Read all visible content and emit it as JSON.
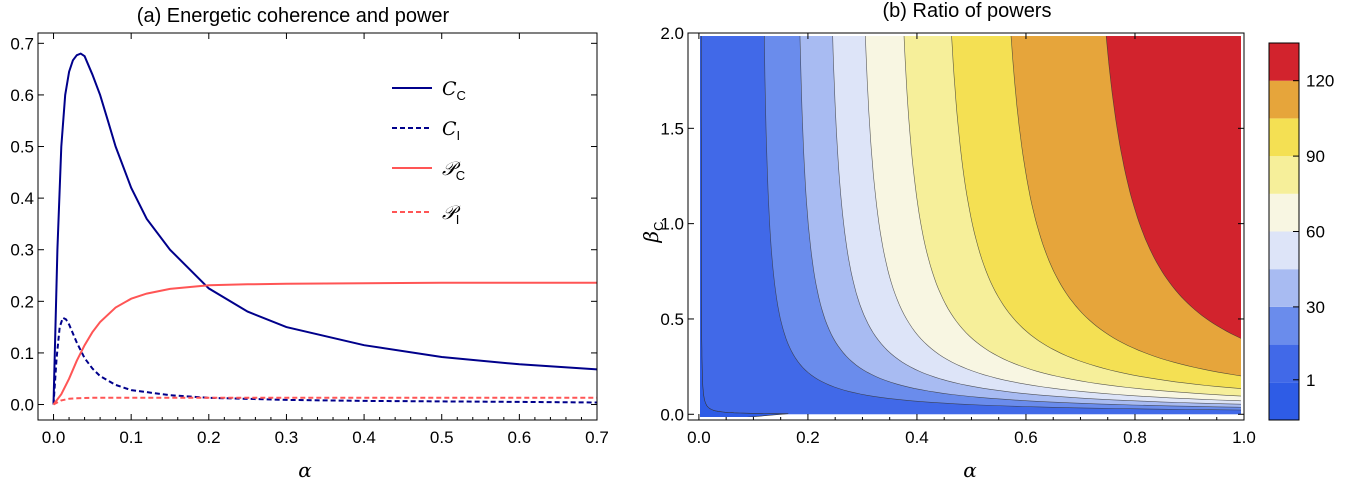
{
  "chart_data": [
    {
      "type": "line",
      "title": "(a) Energetic coherence and power",
      "xlabel": "α",
      "ylabel": "",
      "xlim": [
        -0.02,
        0.7
      ],
      "ylim": [
        -0.03,
        0.72
      ],
      "xticks": [
        "0.0",
        "0.1",
        "0.2",
        "0.3",
        "0.4",
        "0.5",
        "0.6",
        "0.7"
      ],
      "yticks": [
        "0.0",
        "0.1",
        "0.2",
        "0.3",
        "0.4",
        "0.5",
        "0.6",
        "0.7"
      ],
      "legend_position": "top-right",
      "series": [
        {
          "name": "C_C",
          "name_main": "C",
          "name_sub": "C",
          "color": "#00008B",
          "dash": "solid",
          "x": [
            0,
            0.005,
            0.01,
            0.015,
            0.02,
            0.025,
            0.03,
            0.035,
            0.04,
            0.05,
            0.06,
            0.07,
            0.08,
            0.1,
            0.12,
            0.15,
            0.2,
            0.25,
            0.3,
            0.4,
            0.5,
            0.6,
            0.7
          ],
          "y": [
            0,
            0.3,
            0.5,
            0.6,
            0.645,
            0.667,
            0.677,
            0.68,
            0.675,
            0.64,
            0.6,
            0.55,
            0.5,
            0.42,
            0.36,
            0.3,
            0.225,
            0.18,
            0.15,
            0.115,
            0.092,
            0.078,
            0.068
          ]
        },
        {
          "name": "C_I",
          "name_main": "C",
          "name_sub": "I",
          "color": "#00008B",
          "dash": "dashed",
          "x": [
            0,
            0.004,
            0.008,
            0.012,
            0.016,
            0.02,
            0.03,
            0.04,
            0.05,
            0.06,
            0.08,
            0.1,
            0.15,
            0.2,
            0.3,
            0.4,
            0.5,
            0.6,
            0.7
          ],
          "y": [
            0,
            0.09,
            0.15,
            0.168,
            0.165,
            0.155,
            0.12,
            0.09,
            0.07,
            0.055,
            0.038,
            0.028,
            0.018,
            0.013,
            0.009,
            0.007,
            0.006,
            0.005,
            0.004
          ]
        },
        {
          "name": "P_C",
          "name_main": "𝒫",
          "name_sub": "C",
          "color": "#FF5555",
          "dash": "solid",
          "x": [
            0,
            0.01,
            0.02,
            0.03,
            0.04,
            0.05,
            0.06,
            0.08,
            0.1,
            0.12,
            0.15,
            0.2,
            0.25,
            0.3,
            0.4,
            0.5,
            0.6,
            0.7
          ],
          "y": [
            0,
            0.02,
            0.05,
            0.085,
            0.115,
            0.14,
            0.16,
            0.188,
            0.205,
            0.215,
            0.224,
            0.231,
            0.233,
            0.234,
            0.235,
            0.236,
            0.236,
            0.236
          ]
        },
        {
          "name": "P_I",
          "name_main": "𝒫",
          "name_sub": "I",
          "color": "#FF5555",
          "dash": "dashed",
          "x": [
            0,
            0.01,
            0.02,
            0.03,
            0.05,
            0.08,
            0.1,
            0.2,
            0.3,
            0.4,
            0.5,
            0.6,
            0.7
          ],
          "y": [
            0,
            0.008,
            0.011,
            0.012,
            0.013,
            0.013,
            0.013,
            0.013,
            0.013,
            0.013,
            0.013,
            0.013,
            0.013
          ]
        }
      ]
    },
    {
      "type": "heatmap",
      "title": "(b) Ratio of powers",
      "xlabel": "α",
      "ylabel_main": "β",
      "ylabel_sub": "C",
      "xlim": [
        -0.02,
        1.0
      ],
      "ylim": [
        -0.03,
        2.0
      ],
      "xticks": [
        "0.0",
        "0.2",
        "0.4",
        "0.6",
        "0.8",
        "1.0"
      ],
      "yticks": [
        "0.0",
        "0.5",
        "1.0",
        "1.5",
        "2.0"
      ],
      "grid": false,
      "colorbar": {
        "labels": [
          "1",
          "30",
          "60",
          "90",
          "120"
        ],
        "label_values": [
          1,
          30,
          60,
          90,
          120
        ],
        "range": [
          -15,
          135
        ],
        "bands": [
          {
            "from": -15,
            "to": 0,
            "color": "#2E5CE6"
          },
          {
            "from": 0,
            "to": 15,
            "color": "#4169E8"
          },
          {
            "from": 15,
            "to": 30,
            "color": "#6A8CEC"
          },
          {
            "from": 30,
            "to": 45,
            "color": "#A8BBF2"
          },
          {
            "from": 45,
            "to": 60,
            "color": "#DDE4F8"
          },
          {
            "from": 60,
            "to": 75,
            "color": "#F8F6E2"
          },
          {
            "from": 75,
            "to": 90,
            "color": "#F6EF9A"
          },
          {
            "from": 90,
            "to": 105,
            "color": "#F4E053"
          },
          {
            "from": 105,
            "to": 120,
            "color": "#E6A53B"
          },
          {
            "from": 120,
            "to": 135,
            "color": "#D2232D"
          }
        ]
      },
      "contours": [
        {
          "level": 15,
          "asymptote_x": 0.11
        },
        {
          "level": 30,
          "asymptote_x": 0.17
        },
        {
          "level": 45,
          "asymptote_x": 0.225
        },
        {
          "level": 60,
          "asymptote_x": 0.28
        },
        {
          "level": 75,
          "asymptote_x": 0.345
        },
        {
          "level": 90,
          "asymptote_x": 0.425
        },
        {
          "level": 105,
          "asymptote_x": 0.525
        },
        {
          "level": 120,
          "asymptote_x": 0.685
        }
      ]
    }
  ]
}
